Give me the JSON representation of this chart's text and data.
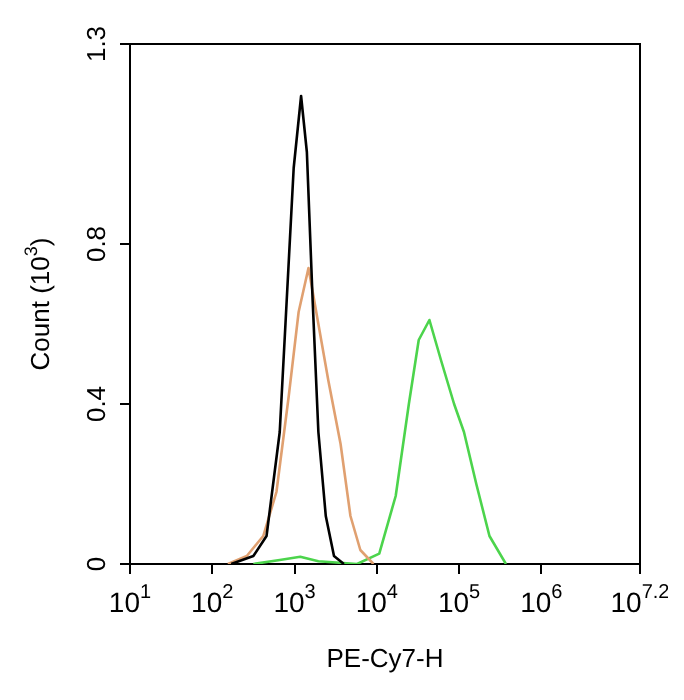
{
  "chart_data": {
    "type": "line",
    "xlabel": "PE-Cy7-H",
    "ylabel": "Count (10$^{3}$)",
    "log": "x",
    "grid": false,
    "legend": false,
    "marker": "none",
    "line_style": "solid",
    "xlim": [
      10,
      15848932
    ],
    "xticks": [
      {
        "value": 10,
        "label": "10$^{1}$"
      },
      {
        "value": 100,
        "label": "10$^{2}$"
      },
      {
        "value": 1000,
        "label": "10$^{3}$"
      },
      {
        "value": 10000,
        "label": "10$^{4}$"
      },
      {
        "value": 100000,
        "label": "10$^{5}$"
      },
      {
        "value": 1000000,
        "label": "10$^{6}$"
      },
      {
        "value": 15848932,
        "label": "10$^{7.2}$"
      }
    ],
    "ylim": [
      0,
      1.3
    ],
    "yticks": [
      0,
      0.4,
      0.8,
      1.3
    ],
    "series": [
      {
        "color": "#000000",
        "x": [
          170,
          316,
          457,
          661,
          776,
          977,
          1202,
          1413,
          1660,
          1950,
          2399,
          3020,
          3981
        ],
        "values": [
          0,
          0.02,
          0.07,
          0.33,
          0.6,
          0.99,
          1.17,
          1.03,
          0.66,
          0.33,
          0.12,
          0.02,
          0
        ]
      },
      {
        "color": "#e0a070",
        "x": [
          155,
          263,
          417,
          603,
          851,
          1122,
          1479,
          1950,
          2570,
          3631,
          4786,
          6310,
          9120
        ],
        "values": [
          0,
          0.02,
          0.07,
          0.18,
          0.42,
          0.63,
          0.74,
          0.6,
          0.46,
          0.3,
          0.12,
          0.035,
          0
        ]
      },
      {
        "color": "#4cd44c",
        "x": [
          316,
          661,
          1175,
          1950,
          5754,
          10720,
          16980,
          24550,
          32360,
          43650,
          60260,
          87100,
          114800,
          162200,
          234400,
          371500
        ],
        "values": [
          0,
          0.01,
          0.018,
          0.007,
          0,
          0.026,
          0.17,
          0.4,
          0.56,
          0.61,
          0.51,
          0.4,
          0.33,
          0.2,
          0.07,
          0
        ]
      }
    ]
  }
}
